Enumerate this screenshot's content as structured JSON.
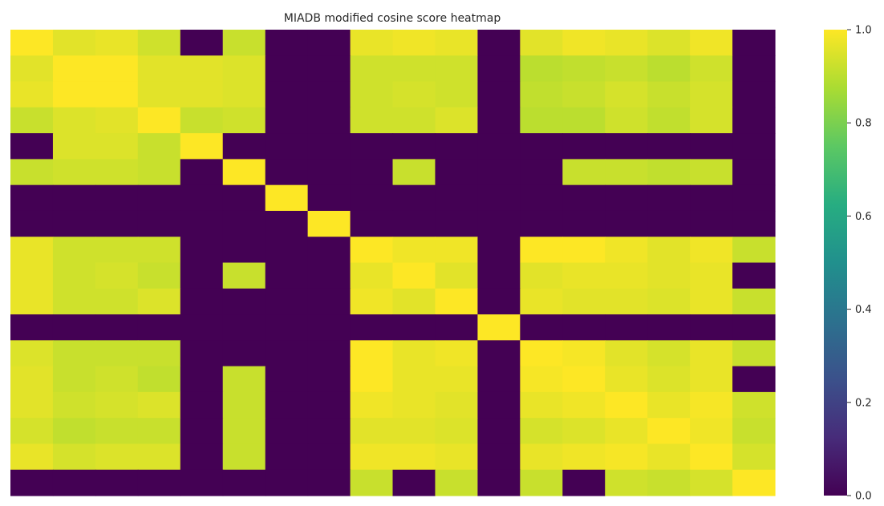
{
  "chart_data": {
    "type": "heatmap",
    "title": "MIADB modified cosine score heatmap",
    "colormap": "viridis",
    "vmin": 0.0,
    "vmax": 1.0,
    "colorbar_ticks": [
      "0.0",
      "0.2",
      "0.4",
      "0.6",
      "0.8",
      "1.0"
    ],
    "xlabel": "",
    "ylabel": "",
    "x_ticks_shown": false,
    "y_ticks_shown": false,
    "grid": false,
    "values": [
      [
        1.0,
        0.96,
        0.97,
        0.93,
        0.0,
        0.92,
        0.0,
        0.0,
        0.97,
        0.98,
        0.97,
        0.0,
        0.96,
        0.98,
        0.97,
        0.95,
        0.98,
        0.0
      ],
      [
        0.96,
        1.0,
        1.0,
        0.96,
        0.96,
        0.95,
        0.0,
        0.0,
        0.93,
        0.93,
        0.93,
        0.0,
        0.9,
        0.91,
        0.92,
        0.9,
        0.93,
        0.0
      ],
      [
        0.97,
        1.0,
        1.0,
        0.96,
        0.96,
        0.95,
        0.0,
        0.0,
        0.93,
        0.94,
        0.93,
        0.0,
        0.91,
        0.92,
        0.94,
        0.92,
        0.94,
        0.0
      ],
      [
        0.92,
        0.95,
        0.96,
        1.0,
        0.92,
        0.93,
        0.0,
        0.0,
        0.93,
        0.93,
        0.95,
        0.0,
        0.9,
        0.9,
        0.93,
        0.91,
        0.94,
        0.0
      ],
      [
        0.0,
        0.95,
        0.95,
        0.92,
        1.0,
        0.0,
        0.0,
        0.0,
        0.0,
        0.0,
        0.0,
        0.0,
        0.0,
        0.0,
        0.0,
        0.0,
        0.0,
        0.0
      ],
      [
        0.92,
        0.93,
        0.93,
        0.92,
        0.0,
        1.0,
        0.0,
        0.0,
        0.0,
        0.92,
        0.0,
        0.0,
        0.0,
        0.92,
        0.92,
        0.91,
        0.92,
        0.0
      ],
      [
        0.0,
        0.0,
        0.0,
        0.0,
        0.0,
        0.0,
        1.0,
        0.0,
        0.0,
        0.0,
        0.0,
        0.0,
        0.0,
        0.0,
        0.0,
        0.0,
        0.0,
        0.0
      ],
      [
        0.0,
        0.0,
        0.0,
        0.0,
        0.0,
        0.0,
        0.0,
        1.0,
        0.0,
        0.0,
        0.0,
        0.0,
        0.0,
        0.0,
        0.0,
        0.0,
        0.0,
        0.0
      ],
      [
        0.97,
        0.93,
        0.93,
        0.93,
        0.0,
        0.0,
        0.0,
        0.0,
        1.0,
        0.98,
        0.98,
        0.0,
        1.0,
        1.0,
        0.98,
        0.96,
        0.98,
        0.92
      ],
      [
        0.97,
        0.93,
        0.94,
        0.92,
        0.0,
        0.92,
        0.0,
        0.0,
        0.97,
        1.0,
        0.96,
        0.0,
        0.96,
        0.97,
        0.97,
        0.96,
        0.97,
        0.0
      ],
      [
        0.97,
        0.93,
        0.93,
        0.95,
        0.0,
        0.0,
        0.0,
        0.0,
        0.98,
        0.96,
        1.0,
        0.0,
        0.97,
        0.96,
        0.96,
        0.95,
        0.97,
        0.92
      ],
      [
        0.0,
        0.0,
        0.0,
        0.0,
        0.0,
        0.0,
        0.0,
        0.0,
        0.0,
        0.0,
        0.0,
        1.0,
        0.0,
        0.0,
        0.0,
        0.0,
        0.0,
        0.0
      ],
      [
        0.95,
        0.92,
        0.92,
        0.92,
        0.0,
        0.0,
        0.0,
        0.0,
        1.0,
        0.97,
        0.98,
        0.0,
        1.0,
        0.99,
        0.96,
        0.94,
        0.97,
        0.92
      ],
      [
        0.96,
        0.92,
        0.93,
        0.91,
        0.0,
        0.92,
        0.0,
        0.0,
        1.0,
        0.97,
        0.97,
        0.0,
        0.99,
        1.0,
        0.97,
        0.95,
        0.97,
        0.0
      ],
      [
        0.96,
        0.93,
        0.94,
        0.95,
        0.0,
        0.92,
        0.0,
        0.0,
        0.98,
        0.97,
        0.96,
        0.0,
        0.97,
        0.98,
        1.0,
        0.97,
        0.99,
        0.93
      ],
      [
        0.94,
        0.91,
        0.92,
        0.92,
        0.0,
        0.92,
        0.0,
        0.0,
        0.96,
        0.96,
        0.95,
        0.0,
        0.94,
        0.95,
        0.97,
        1.0,
        0.98,
        0.92
      ],
      [
        0.97,
        0.94,
        0.95,
        0.95,
        0.0,
        0.92,
        0.0,
        0.0,
        0.98,
        0.98,
        0.97,
        0.0,
        0.97,
        0.98,
        0.99,
        0.97,
        1.0,
        0.94
      ],
      [
        0.0,
        0.0,
        0.0,
        0.0,
        0.0,
        0.0,
        0.0,
        0.0,
        0.92,
        0.0,
        0.92,
        0.0,
        0.92,
        0.0,
        0.93,
        0.92,
        0.94,
        1.0
      ]
    ]
  }
}
